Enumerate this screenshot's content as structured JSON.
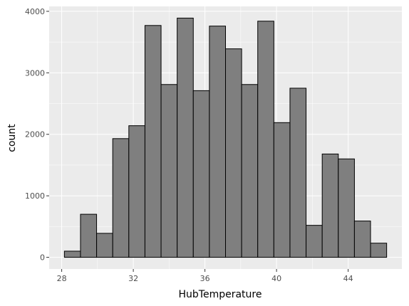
{
  "chart_data": {
    "type": "bar",
    "subtype": "histogram",
    "xlabel": "HubTemperature",
    "ylabel": "count",
    "xlim": [
      27.3,
      47.0
    ],
    "ylim": [
      -190,
      4080
    ],
    "x_ticks": [
      28,
      32,
      36,
      40,
      44
    ],
    "y_ticks": [
      0,
      1000,
      2000,
      3000,
      4000
    ],
    "grid": true,
    "bin_width": 0.9,
    "bins": [
      {
        "start": 28.15,
        "end": 29.05,
        "count": 100
      },
      {
        "start": 29.05,
        "end": 29.95,
        "count": 700
      },
      {
        "start": 29.95,
        "end": 30.85,
        "count": 390
      },
      {
        "start": 30.85,
        "end": 31.75,
        "count": 1930
      },
      {
        "start": 31.75,
        "end": 32.65,
        "count": 2140
      },
      {
        "start": 32.65,
        "end": 33.55,
        "count": 3770
      },
      {
        "start": 33.55,
        "end": 34.45,
        "count": 2810
      },
      {
        "start": 34.45,
        "end": 35.35,
        "count": 3890
      },
      {
        "start": 35.35,
        "end": 36.25,
        "count": 2710
      },
      {
        "start": 36.25,
        "end": 37.15,
        "count": 3760
      },
      {
        "start": 37.15,
        "end": 38.05,
        "count": 3390
      },
      {
        "start": 38.05,
        "end": 38.95,
        "count": 2810
      },
      {
        "start": 38.95,
        "end": 39.85,
        "count": 3840
      },
      {
        "start": 39.85,
        "end": 40.75,
        "count": 2190
      },
      {
        "start": 40.75,
        "end": 41.65,
        "count": 2750
      },
      {
        "start": 41.65,
        "end": 42.55,
        "count": 520
      },
      {
        "start": 42.55,
        "end": 43.45,
        "count": 1680
      },
      {
        "start": 43.45,
        "end": 44.35,
        "count": 1600
      },
      {
        "start": 44.35,
        "end": 45.25,
        "count": 590
      },
      {
        "start": 45.25,
        "end": 46.15,
        "count": 230
      }
    ],
    "colors": {
      "bar_fill": "#7f7f7f",
      "bar_stroke": "#000000",
      "panel_background": "#ebebeb",
      "grid_major": "#ffffff"
    }
  }
}
